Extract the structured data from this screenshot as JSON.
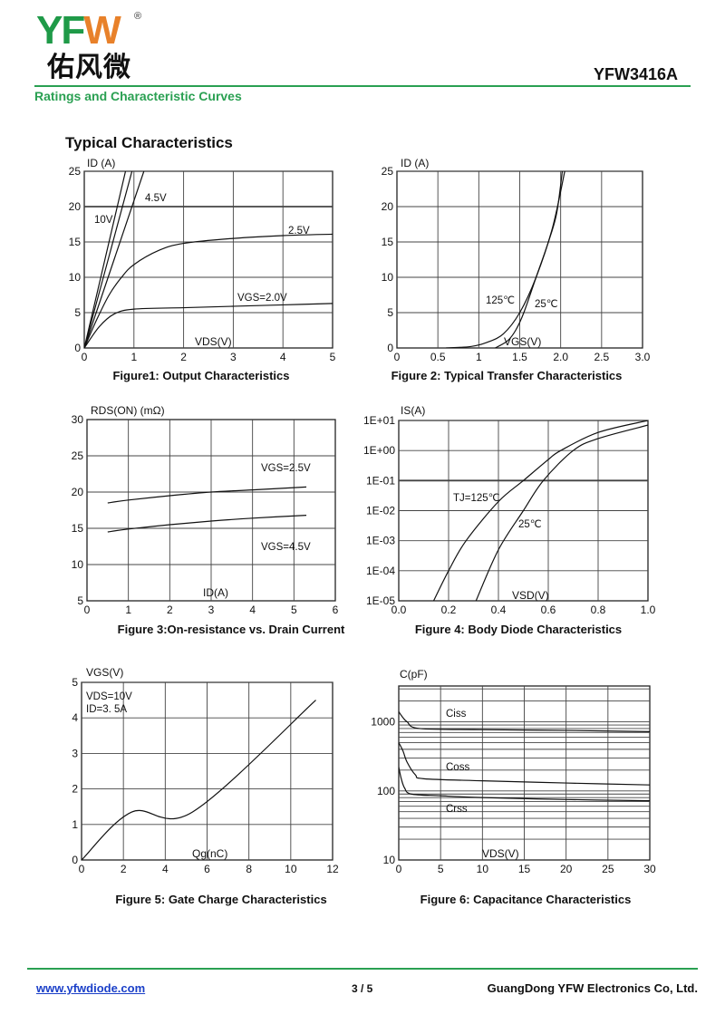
{
  "header": {
    "logo_letters": [
      "YF",
      "W"
    ],
    "logo_registered": "®",
    "logo_chinese": "佑风微",
    "model": "YFW3416A",
    "subtitle": "Ratings and Characteristic Curves",
    "brand_green": "#2aa052",
    "brand_orange": "#e8812a"
  },
  "section_title": "Typical Characteristics",
  "footer": {
    "website": "www.yfwdiode.com",
    "page": "3 / 5",
    "company": "GuangDong YFW Electronics Co, Ltd."
  },
  "chart_data": [
    {
      "type": "line",
      "title": "Figure1: Output Characteristics",
      "ylabel": "ID (A)",
      "xlabel": "VDS(V)",
      "xlim": [
        0,
        5
      ],
      "ylim": [
        0,
        25
      ],
      "xticks": [
        "0",
        "1",
        "2",
        "3",
        "4",
        "5"
      ],
      "yticks": [
        "0",
        "5",
        "10",
        "15",
        "20",
        "25"
      ],
      "grid": true,
      "series": [
        {
          "name": "10V",
          "x": [
            0,
            0.83
          ],
          "y": [
            0,
            25
          ]
        },
        {
          "name": "",
          "x": [
            0,
            0.96
          ],
          "y": [
            0,
            25
          ]
        },
        {
          "name": "4.5V",
          "x": [
            0,
            1.2
          ],
          "y": [
            0,
            25
          ]
        },
        {
          "name": "2.5V",
          "x": [
            0,
            0.25,
            0.5,
            0.75,
            1,
            1.5,
            2,
            3,
            4,
            5
          ],
          "y": [
            0,
            4,
            7.5,
            10,
            11.8,
            13.8,
            14.8,
            15.5,
            15.9,
            16.1
          ]
        },
        {
          "name": "VGS=2.0V",
          "x": [
            0,
            0.3,
            0.6,
            1,
            2,
            3,
            4,
            5
          ],
          "y": [
            0,
            3,
            4.8,
            5.5,
            5.7,
            5.9,
            6.1,
            6.3
          ]
        }
      ]
    },
    {
      "type": "line",
      "title": "Figure 2: Typical Transfer Characteristics",
      "ylabel": "ID (A)",
      "xlabel": "VGS(V)",
      "xlim": [
        0,
        3
      ],
      "ylim": [
        0,
        25
      ],
      "xticks": [
        "0",
        "0.5",
        "1",
        "1.5",
        "2.0",
        "2.5",
        "3.0"
      ],
      "yticks": [
        "0",
        "5",
        "10",
        "15",
        "20",
        "25"
      ],
      "grid": true,
      "series": [
        {
          "name": "125℃",
          "x": [
            0.6,
            0.9,
            1.1,
            1.3,
            1.5,
            1.7,
            1.9,
            2.05
          ],
          "y": [
            0,
            0.2,
            0.8,
            2,
            5,
            10,
            17,
            25
          ]
        },
        {
          "name": "25℃",
          "x": [
            1.2,
            1.35,
            1.45,
            1.55,
            1.7,
            1.85,
            1.95,
            2.02
          ],
          "y": [
            0,
            1,
            2.5,
            5,
            10,
            15,
            19,
            25
          ]
        }
      ]
    },
    {
      "type": "line",
      "title": "Figure 3:On-resistance vs. Drain Current",
      "ylabel": "RDS(ON) (mΩ)",
      "xlabel": "ID(A)",
      "xlim": [
        0,
        6
      ],
      "ylim": [
        5,
        30
      ],
      "xticks": [
        "0",
        "1",
        "2",
        "3",
        "4",
        "5",
        "6"
      ],
      "yticks": [
        "5",
        "10",
        "15",
        "20",
        "25",
        "30"
      ],
      "grid": true,
      "series": [
        {
          "name": "VGS=2.5V",
          "x": [
            0.5,
            1,
            2,
            3,
            4,
            5.3
          ],
          "y": [
            18.5,
            18.9,
            19.5,
            20,
            20.3,
            20.7
          ]
        },
        {
          "name": "VGS=4.5V",
          "x": [
            0.5,
            1,
            2,
            3,
            4,
            5.3
          ],
          "y": [
            14.5,
            14.9,
            15.5,
            16,
            16.4,
            16.8
          ]
        }
      ]
    },
    {
      "type": "line",
      "title": "Figure 4: Body Diode Characteristics",
      "ylabel": "IS(A)",
      "xlabel": "VSD(V)",
      "xlim": [
        0,
        1
      ],
      "ylim": [
        1e-05,
        10
      ],
      "yscale": "log",
      "xticks": [
        "0.0",
        "0.2",
        "0.4",
        "0.6",
        "0.8",
        "1.0"
      ],
      "yticks": [
        "1E-05",
        "1E-04",
        "1E-03",
        "1E-02",
        "1E-01",
        "1E+00",
        "1E+01"
      ],
      "grid": true,
      "series": [
        {
          "name": "TJ=125℃",
          "x": [
            0.14,
            0.2,
            0.27,
            0.4,
            0.5,
            0.6,
            0.65,
            0.8,
            1.0
          ],
          "y": [
            1e-05,
            0.0001,
            0.001,
            0.02,
            0.1,
            0.5,
            1,
            4,
            10
          ]
        },
        {
          "name": "25℃",
          "x": [
            0.31,
            0.4,
            0.5,
            0.58,
            0.7,
            0.8,
            1.0
          ],
          "y": [
            1e-05,
            0.0005,
            0.01,
            0.1,
            1,
            2.5,
            7
          ]
        }
      ]
    },
    {
      "type": "line",
      "title": "Figure 5: Gate Charge Characteristics",
      "ylabel": "VGS(V)",
      "xlabel": "Qg(nC)",
      "xlim": [
        0,
        12
      ],
      "ylim": [
        0,
        5
      ],
      "xticks": [
        "0",
        "2",
        "4",
        "6",
        "8",
        "10",
        "12"
      ],
      "yticks": [
        "0",
        "1",
        "2",
        "3",
        "4",
        "5"
      ],
      "grid": true,
      "annotations": [
        "VDS=10V",
        "ID=3. 5A"
      ],
      "series": [
        {
          "name": "",
          "x": [
            0,
            2.4,
            5.3,
            11.2
          ],
          "y": [
            0,
            1.35,
            1.35,
            4.5
          ]
        }
      ]
    },
    {
      "type": "line",
      "title": "Figure 6: Capacitance Characteristics",
      "ylabel": "C(pF)",
      "xlabel": "VDS(V)",
      "xlim": [
        0,
        30
      ],
      "ylim": [
        10,
        3300
      ],
      "yscale": "log",
      "xticks": [
        "0",
        "5",
        "10",
        "15",
        "20",
        "25",
        "30"
      ],
      "yticks": [
        "10",
        "100",
        "1000"
      ],
      "grid": true,
      "series": [
        {
          "name": "Ciss",
          "x": [
            0,
            0.5,
            1,
            2.5,
            10,
            20,
            30
          ],
          "y": [
            1400,
            1150,
            1000,
            800,
            770,
            750,
            720
          ]
        },
        {
          "name": "Coss",
          "x": [
            0,
            0.5,
            1,
            2,
            3,
            10,
            20,
            30
          ],
          "y": [
            500,
            380,
            260,
            170,
            150,
            140,
            130,
            122
          ]
        },
        {
          "name": "Crss",
          "x": [
            0,
            0.3,
            0.7,
            1.5,
            5,
            10,
            20,
            30
          ],
          "y": [
            220,
            150,
            110,
            90,
            85,
            80,
            75,
            72
          ]
        }
      ]
    }
  ]
}
